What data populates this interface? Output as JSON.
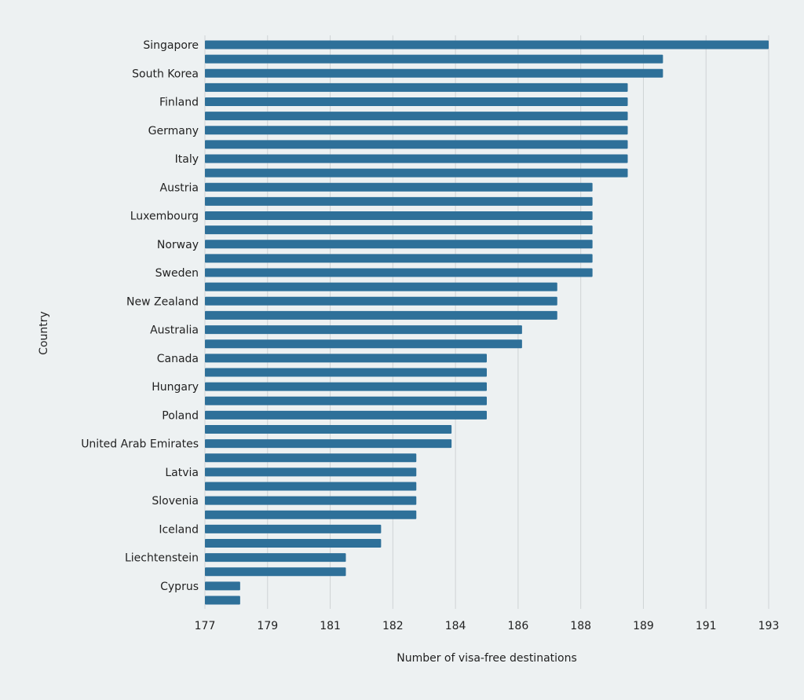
{
  "chart_data": {
    "type": "bar",
    "orientation": "horizontal",
    "xlabel": "Number of visa-free destinations",
    "ylabel": "Country",
    "xlim": [
      177,
      193
    ],
    "x_tick_labels": [
      "177",
      "179",
      "181",
      "182",
      "184",
      "186",
      "188",
      "189",
      "191",
      "193"
    ],
    "grid": "vertical",
    "bar_color": "#2e7099",
    "background": "#edf1f2",
    "categories": [
      "Singapore",
      "",
      "South Korea",
      "",
      "Finland",
      "",
      "Germany",
      "",
      "Italy",
      "",
      "Austria",
      "",
      "Luxembourg",
      "",
      "Norway",
      "",
      "Sweden",
      "",
      "New Zealand",
      "",
      "Australia",
      "",
      "Canada",
      "",
      "Hungary",
      "",
      "Poland",
      "",
      "United Arab Emirates",
      "",
      "Latvia",
      "",
      "Slovenia",
      "",
      "Iceland",
      "",
      "Liechtenstein",
      "",
      "Cyprus",
      ""
    ],
    "values": [
      193,
      190,
      190,
      189,
      189,
      189,
      189,
      189,
      189,
      189,
      188,
      188,
      188,
      188,
      188,
      188,
      188,
      187,
      187,
      187,
      186,
      186,
      185,
      185,
      185,
      185,
      185,
      184,
      184,
      183,
      183,
      183,
      183,
      183,
      182,
      182,
      181,
      181,
      178,
      178
    ]
  }
}
